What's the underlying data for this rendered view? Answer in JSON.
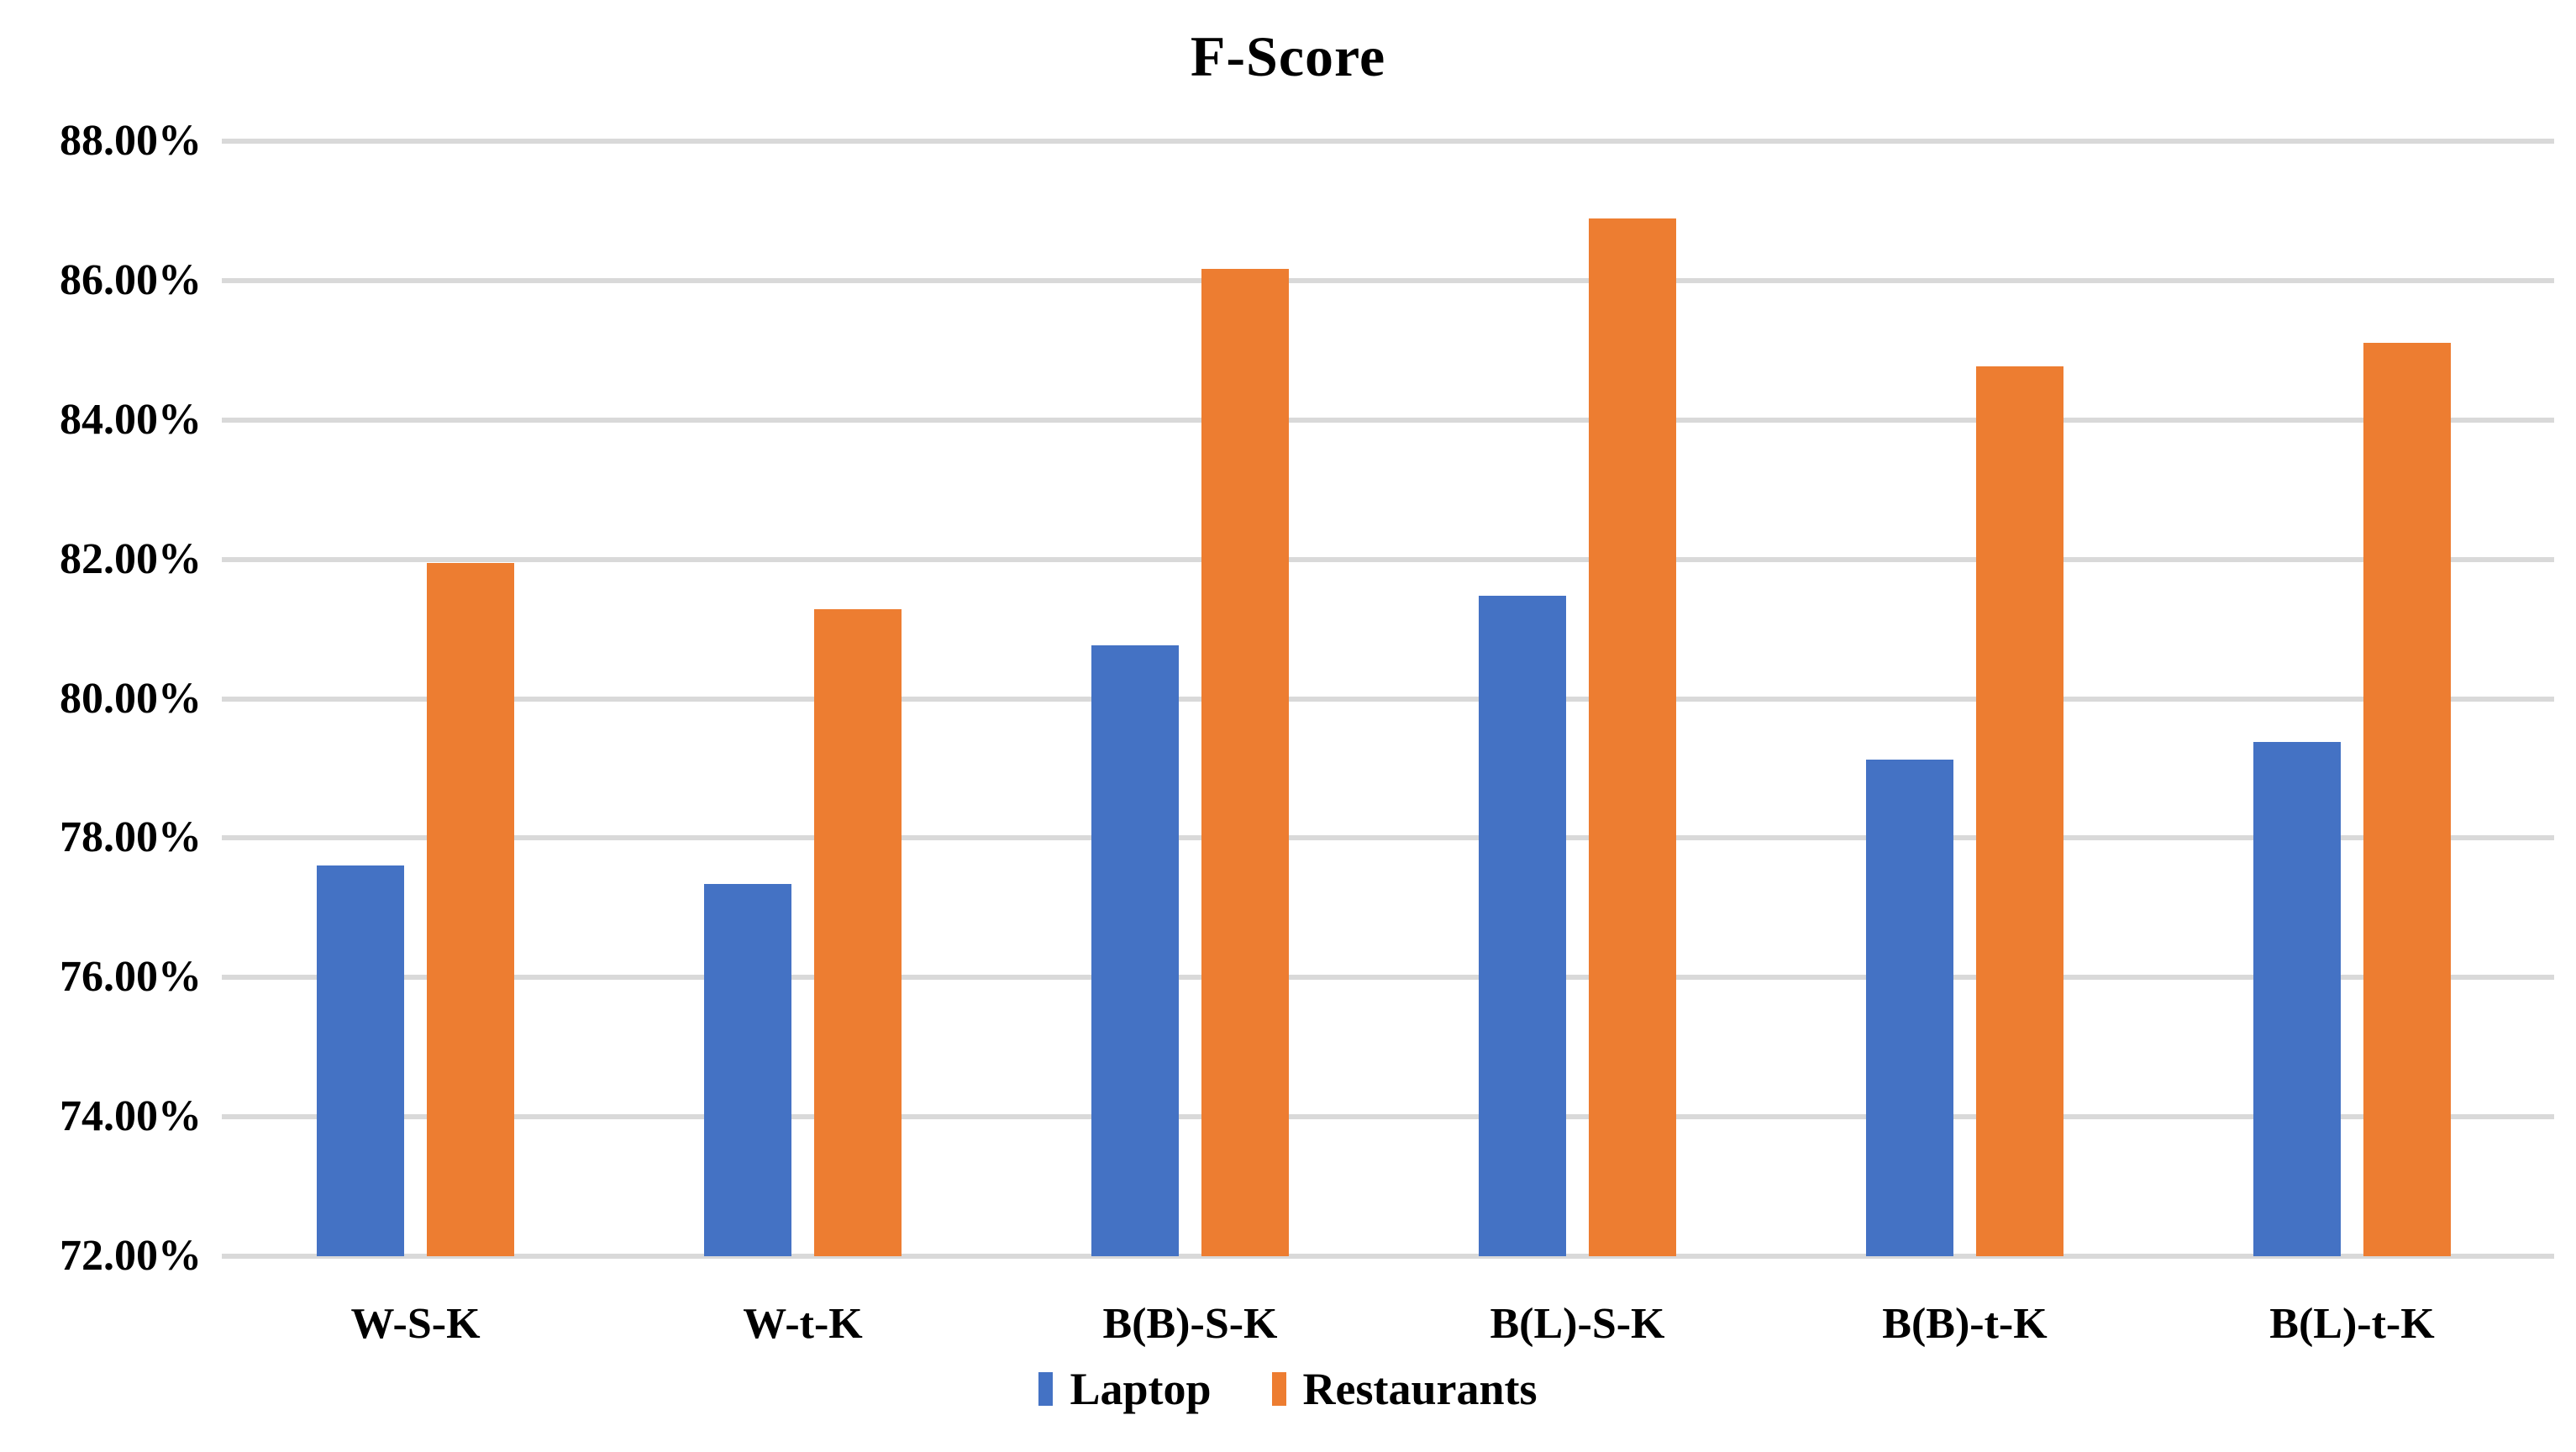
{
  "title": "F-Score",
  "chart_data": {
    "type": "bar",
    "title": "F-Score",
    "categories": [
      "W-S-K",
      "W-t-K",
      "B(B)-S-K",
      "B(L)-S-K",
      "B(B)-t-K",
      "B(L)-t-K"
    ],
    "series": [
      {
        "name": "Laptop",
        "color": "#4472C4",
        "values": [
          77.61,
          77.34,
          80.77,
          81.48,
          79.13,
          79.38
        ]
      },
      {
        "name": "Restaurants",
        "color": "#ED7D31",
        "values": [
          81.95,
          81.28,
          86.17,
          86.89,
          84.77,
          85.11
        ]
      }
    ],
    "ylim": [
      72,
      88
    ],
    "ytick_step": 2,
    "ytick_labels": [
      "72.00%",
      "74.00%",
      "76.00%",
      "78.00%",
      "80.00%",
      "82.00%",
      "84.00%",
      "86.00%",
      "88.00%"
    ],
    "xlabel": "",
    "ylabel": "",
    "grid": true,
    "legend_position": "bottom"
  },
  "colors": {
    "laptop": "#4472C4",
    "restaurants": "#ED7D31",
    "gridline": "#D9D9D9",
    "text": "#000000",
    "background": "#FFFFFF"
  }
}
